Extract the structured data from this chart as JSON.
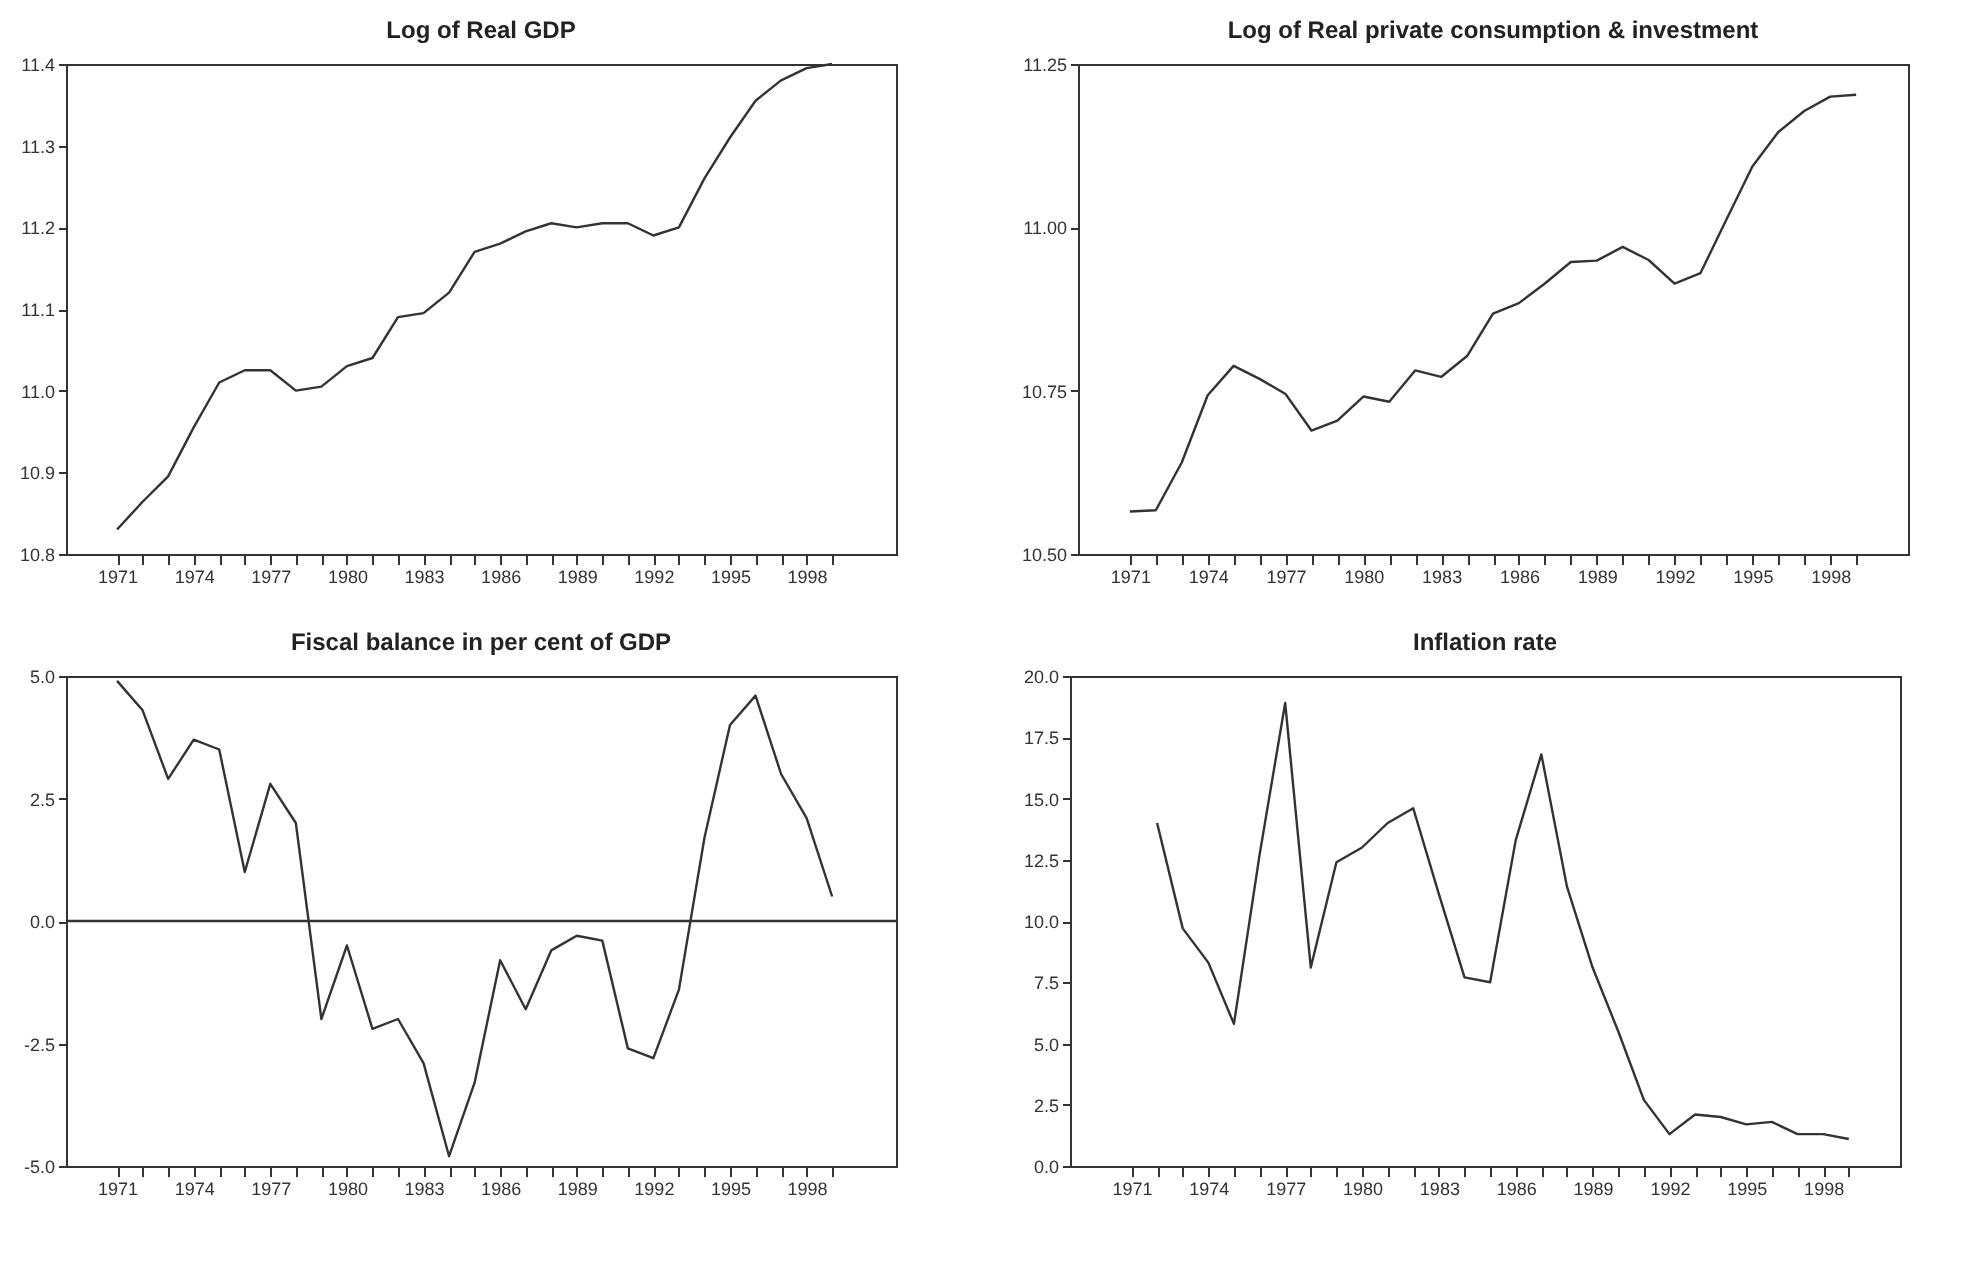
{
  "chart_data": [
    {
      "type": "line",
      "title": "Log of Real GDP",
      "x": [
        1971,
        1972,
        1973,
        1974,
        1975,
        1976,
        1977,
        1978,
        1979,
        1980,
        1981,
        1982,
        1983,
        1984,
        1985,
        1986,
        1987,
        1988,
        1989,
        1990,
        1991,
        1992,
        1993,
        1994,
        1995,
        1996,
        1997,
        1998,
        1999
      ],
      "series": [
        {
          "color": "#333333",
          "values": [
            10.83,
            10.864,
            10.895,
            10.955,
            11.01,
            11.025,
            11.025,
            11.0,
            11.005,
            11.03,
            11.04,
            11.09,
            11.095,
            11.12,
            11.17,
            11.18,
            11.195,
            11.205,
            11.2,
            11.205,
            11.205,
            11.19,
            11.2,
            11.26,
            11.31,
            11.355,
            11.38,
            11.395,
            11.4
          ]
        }
      ],
      "xlim": [
        1969,
        2001.5
      ],
      "xticks": [
        {
          "value": 1971,
          "label": "1971"
        },
        {
          "value": 1972,
          "label": null
        },
        {
          "value": 1973,
          "label": null
        },
        {
          "value": 1974,
          "label": "1974"
        },
        {
          "value": 1975,
          "label": null
        },
        {
          "value": 1976,
          "label": null
        },
        {
          "value": 1977,
          "label": "1977"
        },
        {
          "value": 1978,
          "label": null
        },
        {
          "value": 1979,
          "label": null
        },
        {
          "value": 1980,
          "label": "1980"
        },
        {
          "value": 1981,
          "label": null
        },
        {
          "value": 1982,
          "label": null
        },
        {
          "value": 1983,
          "label": "1983"
        },
        {
          "value": 1984,
          "label": null
        },
        {
          "value": 1985,
          "label": null
        },
        {
          "value": 1986,
          "label": "1986"
        },
        {
          "value": 1987,
          "label": null
        },
        {
          "value": 1988,
          "label": null
        },
        {
          "value": 1989,
          "label": "1989"
        },
        {
          "value": 1990,
          "label": null
        },
        {
          "value": 1991,
          "label": null
        },
        {
          "value": 1992,
          "label": "1992"
        },
        {
          "value": 1993,
          "label": null
        },
        {
          "value": 1994,
          "label": null
        },
        {
          "value": 1995,
          "label": "1995"
        },
        {
          "value": 1996,
          "label": null
        },
        {
          "value": 1997,
          "label": null
        },
        {
          "value": 1998,
          "label": "1998"
        },
        {
          "value": 1999,
          "label": null
        }
      ],
      "ylim": [
        10.8,
        11.4
      ],
      "yticks": [
        {
          "value": 10.8,
          "label": "10.8"
        },
        {
          "value": 10.9,
          "label": "10.9"
        },
        {
          "value": 11.0,
          "label": "11.0"
        },
        {
          "value": 11.1,
          "label": "11.1"
        },
        {
          "value": 11.2,
          "label": "11.2"
        },
        {
          "value": 11.3,
          "label": "11.3"
        },
        {
          "value": 11.4,
          "label": "11.4"
        }
      ],
      "grid": false
    },
    {
      "type": "line",
      "title": "Log of Real private consumption & investment",
      "x": [
        1971,
        1972,
        1973,
        1974,
        1975,
        1976,
        1977,
        1978,
        1979,
        1980,
        1981,
        1982,
        1983,
        1984,
        1985,
        1986,
        1987,
        1988,
        1989,
        1990,
        1991,
        1992,
        1993,
        1994,
        1995,
        1996,
        1997,
        1998,
        1999
      ],
      "series": [
        {
          "color": "#333333",
          "values": [
            10.565,
            10.567,
            10.64,
            10.743,
            10.788,
            10.768,
            10.745,
            10.689,
            10.704,
            10.741,
            10.733,
            10.781,
            10.771,
            10.803,
            10.868,
            10.884,
            10.914,
            10.947,
            10.949,
            10.97,
            10.95,
            10.914,
            10.93,
            11.012,
            11.093,
            11.146,
            11.178,
            11.2,
            11.203
          ]
        }
      ],
      "xlim": [
        1969,
        2001
      ],
      "xticks": [
        {
          "value": 1971,
          "label": "1971"
        },
        {
          "value": 1972,
          "label": null
        },
        {
          "value": 1973,
          "label": null
        },
        {
          "value": 1974,
          "label": "1974"
        },
        {
          "value": 1975,
          "label": null
        },
        {
          "value": 1976,
          "label": null
        },
        {
          "value": 1977,
          "label": "1977"
        },
        {
          "value": 1978,
          "label": null
        },
        {
          "value": 1979,
          "label": null
        },
        {
          "value": 1980,
          "label": "1980"
        },
        {
          "value": 1981,
          "label": null
        },
        {
          "value": 1982,
          "label": null
        },
        {
          "value": 1983,
          "label": "1983"
        },
        {
          "value": 1984,
          "label": null
        },
        {
          "value": 1985,
          "label": null
        },
        {
          "value": 1986,
          "label": "1986"
        },
        {
          "value": 1987,
          "label": null
        },
        {
          "value": 1988,
          "label": null
        },
        {
          "value": 1989,
          "label": "1989"
        },
        {
          "value": 1990,
          "label": null
        },
        {
          "value": 1991,
          "label": null
        },
        {
          "value": 1992,
          "label": "1992"
        },
        {
          "value": 1993,
          "label": null
        },
        {
          "value": 1994,
          "label": null
        },
        {
          "value": 1995,
          "label": "1995"
        },
        {
          "value": 1996,
          "label": null
        },
        {
          "value": 1997,
          "label": null
        },
        {
          "value": 1998,
          "label": "1998"
        },
        {
          "value": 1999,
          "label": null
        }
      ],
      "ylim": [
        10.5,
        11.25
      ],
      "yticks": [
        {
          "value": 10.5,
          "label": "10.50"
        },
        {
          "value": 10.75,
          "label": "10.75"
        },
        {
          "value": 11.0,
          "label": "11.00"
        },
        {
          "value": 11.25,
          "label": "11.25"
        }
      ],
      "grid": false
    },
    {
      "type": "line",
      "title": "Fiscal balance in per cent of GDP",
      "x": [
        1971,
        1972,
        1973,
        1974,
        1975,
        1976,
        1977,
        1978,
        1979,
        1980,
        1981,
        1982,
        1983,
        1984,
        1985,
        1986,
        1987,
        1988,
        1989,
        1990,
        1991,
        1992,
        1993,
        1994,
        1995,
        1996,
        1997,
        1998,
        1999
      ],
      "series": [
        {
          "color": "#333333",
          "values": [
            4.9,
            4.3,
            2.9,
            3.7,
            3.5,
            1.0,
            2.8,
            2.0,
            -2.0,
            -0.5,
            -2.2,
            -2.0,
            -2.9,
            -4.8,
            -3.3,
            -0.8,
            -1.8,
            -0.6,
            -0.3,
            -0.4,
            -2.6,
            -2.8,
            -1.4,
            1.7,
            4.0,
            4.6,
            3.0,
            2.1,
            0.5
          ]
        }
      ],
      "xlim": [
        1969,
        2001.5
      ],
      "xticks": [
        {
          "value": 1971,
          "label": "1971"
        },
        {
          "value": 1972,
          "label": null
        },
        {
          "value": 1973,
          "label": null
        },
        {
          "value": 1974,
          "label": "1974"
        },
        {
          "value": 1975,
          "label": null
        },
        {
          "value": 1976,
          "label": null
        },
        {
          "value": 1977,
          "label": "1977"
        },
        {
          "value": 1978,
          "label": null
        },
        {
          "value": 1979,
          "label": null
        },
        {
          "value": 1980,
          "label": "1980"
        },
        {
          "value": 1981,
          "label": null
        },
        {
          "value": 1982,
          "label": null
        },
        {
          "value": 1983,
          "label": "1983"
        },
        {
          "value": 1984,
          "label": null
        },
        {
          "value": 1985,
          "label": null
        },
        {
          "value": 1986,
          "label": "1986"
        },
        {
          "value": 1987,
          "label": null
        },
        {
          "value": 1988,
          "label": null
        },
        {
          "value": 1989,
          "label": "1989"
        },
        {
          "value": 1990,
          "label": null
        },
        {
          "value": 1991,
          "label": null
        },
        {
          "value": 1992,
          "label": "1992"
        },
        {
          "value": 1993,
          "label": null
        },
        {
          "value": 1994,
          "label": null
        },
        {
          "value": 1995,
          "label": "1995"
        },
        {
          "value": 1996,
          "label": null
        },
        {
          "value": 1997,
          "label": null
        },
        {
          "value": 1998,
          "label": "1998"
        },
        {
          "value": 1999,
          "label": null
        }
      ],
      "ylim": [
        -5.0,
        5.0
      ],
      "yticks": [
        {
          "value": -5,
          "label": "-5.0"
        },
        {
          "value": -2.5,
          "label": "-2.5"
        },
        {
          "value": 0,
          "label": "0.0"
        },
        {
          "value": 2.5,
          "label": "2.5"
        },
        {
          "value": 5,
          "label": "5.0"
        }
      ],
      "ref_lines": [
        {
          "axis": "y",
          "value": 0,
          "color": "#333333"
        }
      ],
      "grid": false
    },
    {
      "type": "line",
      "title": "Inflation rate",
      "x": [
        1972,
        1973,
        1974,
        1975,
        1976,
        1977,
        1978,
        1979,
        1980,
        1981,
        1982,
        1983,
        1984,
        1985,
        1986,
        1987,
        1988,
        1989,
        1990,
        1991,
        1992,
        1993,
        1994,
        1995,
        1996,
        1997,
        1998,
        1999
      ],
      "series": [
        {
          "color": "#333333",
          "values": [
            14.0,
            9.7,
            8.3,
            5.8,
            12.7,
            18.9,
            8.1,
            12.4,
            13.0,
            14.0,
            14.6,
            11.1,
            7.7,
            7.5,
            13.3,
            16.8,
            11.4,
            8.1,
            5.5,
            2.7,
            1.3,
            2.1,
            2.0,
            1.7,
            1.8,
            1.3,
            1.3,
            1.1
          ]
        }
      ],
      "xlim": [
        1968.6,
        2001
      ],
      "xticks": [
        {
          "value": 1971,
          "label": "1971"
        },
        {
          "value": 1972,
          "label": null
        },
        {
          "value": 1973,
          "label": null
        },
        {
          "value": 1974,
          "label": "1974"
        },
        {
          "value": 1975,
          "label": null
        },
        {
          "value": 1976,
          "label": null
        },
        {
          "value": 1977,
          "label": "1977"
        },
        {
          "value": 1978,
          "label": null
        },
        {
          "value": 1979,
          "label": null
        },
        {
          "value": 1980,
          "label": "1980"
        },
        {
          "value": 1981,
          "label": null
        },
        {
          "value": 1982,
          "label": null
        },
        {
          "value": 1983,
          "label": "1983"
        },
        {
          "value": 1984,
          "label": null
        },
        {
          "value": 1985,
          "label": null
        },
        {
          "value": 1986,
          "label": "1986"
        },
        {
          "value": 1987,
          "label": null
        },
        {
          "value": 1988,
          "label": null
        },
        {
          "value": 1989,
          "label": "1989"
        },
        {
          "value": 1990,
          "label": null
        },
        {
          "value": 1991,
          "label": null
        },
        {
          "value": 1992,
          "label": "1992"
        },
        {
          "value": 1993,
          "label": null
        },
        {
          "value": 1994,
          "label": null
        },
        {
          "value": 1995,
          "label": "1995"
        },
        {
          "value": 1996,
          "label": null
        },
        {
          "value": 1997,
          "label": null
        },
        {
          "value": 1998,
          "label": "1998"
        },
        {
          "value": 1999,
          "label": null
        }
      ],
      "ylim": [
        0.0,
        20.0
      ],
      "yticks": [
        {
          "value": 0,
          "label": "0.0"
        },
        {
          "value": 2.5,
          "label": "2.5"
        },
        {
          "value": 5,
          "label": "5.0"
        },
        {
          "value": 7.5,
          "label": "7.5"
        },
        {
          "value": 10,
          "label": "10.0"
        },
        {
          "value": 12.5,
          "label": "12.5"
        },
        {
          "value": 15,
          "label": "15.0"
        },
        {
          "value": 17.5,
          "label": "17.5"
        },
        {
          "value": 20,
          "label": "20.0"
        }
      ],
      "grid": false
    }
  ]
}
